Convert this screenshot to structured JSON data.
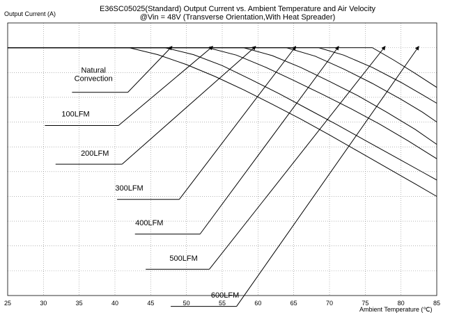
{
  "chart_data": {
    "type": "line",
    "title": "E36SC05025(Standard)  Output Current vs. Ambient Temperature and Air Velocity",
    "subtitle": "@Vin = 48V (Transverse Orientation,With Heat Spreader)",
    "xlabel": "Ambient Temperature (℃)",
    "ylabel": "Output Current (A)",
    "xlim": [
      25,
      85
    ],
    "ylim": [
      0,
      55
    ],
    "xticks": [
      "25",
      "30",
      "35",
      "40",
      "45",
      "50",
      "55",
      "60",
      "65",
      "70",
      "75",
      "80",
      "85"
    ],
    "grid": true,
    "legend": "none",
    "line_color": "#000000",
    "series": [
      {
        "name": "Natural Convection",
        "x": [
          25,
          42,
          46,
          50,
          54,
          58,
          62,
          66,
          70,
          74,
          78,
          82,
          85
        ],
        "y": [
          50,
          50,
          48.6,
          46.6,
          44.2,
          41.5,
          38.6,
          35.6,
          32.4,
          29.1,
          25.8,
          22.5,
          20
        ]
      },
      {
        "name": "100LFM",
        "x": [
          25,
          47,
          51,
          55,
          59,
          63,
          67,
          71,
          75,
          79,
          83,
          85
        ],
        "y": [
          50,
          50,
          48.6,
          46.4,
          43.6,
          40.7,
          37.6,
          34.5,
          31.3,
          28.1,
          24.9,
          23.3
        ]
      },
      {
        "name": "200LFM",
        "x": [
          25,
          53,
          57,
          61,
          65,
          69,
          73,
          77,
          81,
          85
        ],
        "y": [
          50,
          50,
          48.5,
          46.1,
          43.4,
          40.6,
          37.7,
          34.6,
          31.2,
          27.6
        ]
      },
      {
        "name": "300LFM",
        "x": [
          25,
          58,
          62,
          66,
          70,
          74,
          78,
          82,
          85
        ],
        "y": [
          50,
          50,
          48.4,
          46,
          43.2,
          40.3,
          37,
          33.5,
          30.5
        ]
      },
      {
        "name": "400LFM",
        "x": [
          25,
          64,
          68,
          72,
          76,
          80,
          83,
          85
        ],
        "y": [
          50,
          50,
          48.3,
          45.7,
          42.8,
          39.6,
          37,
          35
        ]
      },
      {
        "name": "500LFM",
        "x": [
          25,
          68.5,
          72,
          76,
          80,
          83,
          85
        ],
        "y": [
          50,
          50,
          48.5,
          46,
          43,
          40.5,
          38.8
        ]
      },
      {
        "name": "600LFM",
        "x": [
          25,
          76,
          79,
          82,
          85
        ],
        "y": [
          50,
          50,
          47.5,
          44.8,
          42
        ]
      }
    ],
    "annotations": [
      {
        "label": "Natural Convection",
        "lines": [
          "Natural",
          "Convection"
        ],
        "text_x": 37,
        "text_y": 45,
        "line_x": [
          34,
          41.8
        ],
        "line_y": 41,
        "arrow_to": [
          48,
          50.3
        ]
      },
      {
        "label": "100LFM",
        "text_x": 34.5,
        "text_y": 36.1,
        "line_x": [
          30.2,
          40.5
        ],
        "line_y": 34.3,
        "arrow_to": [
          53.7,
          50.3
        ]
      },
      {
        "label": "200LFM",
        "text_x": 37.2,
        "text_y": 28.2,
        "line_x": [
          31.7,
          41
        ],
        "line_y": 26.5,
        "arrow_to": [
          59.7,
          50.3
        ]
      },
      {
        "label": "300LFM",
        "text_x": 42,
        "text_y": 21.2,
        "line_x": [
          40.3,
          49
        ],
        "line_y": 19.4,
        "arrow_to": [
          65.3,
          50.3
        ]
      },
      {
        "label": "400LFM",
        "text_x": 44.8,
        "text_y": 14.2,
        "line_x": [
          42.8,
          51.9
        ],
        "line_y": 12.4,
        "arrow_to": [
          71.3,
          50.3
        ]
      },
      {
        "label": "500LFM",
        "text_x": 49.6,
        "text_y": 7,
        "line_x": [
          44.3,
          53.2
        ],
        "line_y": 5.3,
        "arrow_to": [
          77.8,
          50.3
        ]
      },
      {
        "label": "600LFM",
        "text_x": 55.4,
        "text_y": -0.4,
        "line_x": [
          47.8,
          57
        ],
        "line_y": -2.2,
        "arrow_to": [
          82.5,
          50.3
        ]
      }
    ]
  }
}
